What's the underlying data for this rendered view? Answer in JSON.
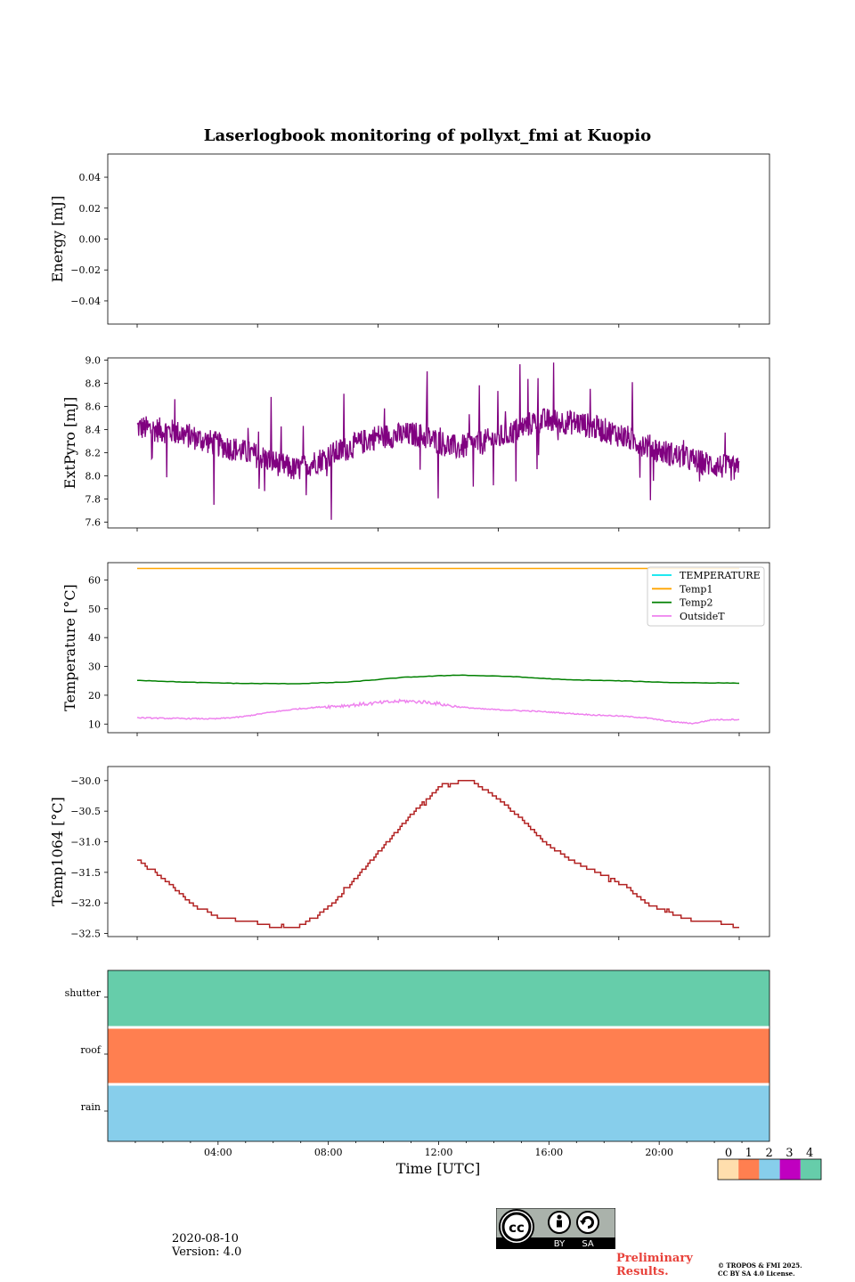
{
  "figure": {
    "title": "Laserlogbook monitoring of pollyxt_fmi at Kuopio",
    "xlabel": "Time [UTC]",
    "x_ticks": [
      "04:00",
      "08:00",
      "12:00",
      "16:00",
      "20:00"
    ],
    "x_tick_hours": [
      4,
      8,
      12,
      16,
      20
    ],
    "x_range_hours": [
      0,
      24
    ]
  },
  "chart_data": [
    {
      "type": "line",
      "id": "energy",
      "ylabel": "Energy [mJ]",
      "ylim": [
        -0.055,
        0.055
      ],
      "yticks": [
        0.04,
        0.02,
        0.0,
        -0.02,
        -0.04
      ],
      "ytick_labels": [
        "0.04",
        "0.02",
        "0.00",
        "−0.02",
        "−0.04"
      ],
      "series": []
    },
    {
      "type": "line",
      "id": "extpyro",
      "ylabel": "ExtPyro [mJ]",
      "ylim": [
        7.55,
        9.02
      ],
      "yticks": [
        9.0,
        8.8,
        8.6,
        8.4,
        8.2,
        8.0,
        7.8,
        7.6
      ],
      "ytick_labels": [
        "9.0",
        "8.8",
        "8.6",
        "8.4",
        "8.2",
        "8.0",
        "7.8",
        "7.6"
      ],
      "series": [
        {
          "name": "ExtPyro",
          "color": "#800080",
          "x_hours": [
            1.1,
            2.5,
            4.0,
            5.5,
            7.0,
            8.5,
            10.0,
            11.5,
            13.0,
            14.5,
            16.0,
            17.5,
            19.0,
            20.5,
            22.0,
            23.5
          ],
          "y_mean": [
            8.42,
            8.38,
            8.28,
            8.18,
            8.05,
            8.2,
            8.34,
            8.36,
            8.24,
            8.32,
            8.48,
            8.46,
            8.36,
            8.22,
            8.12,
            8.05
          ],
          "noise": 0.11
        }
      ]
    },
    {
      "type": "line",
      "id": "temperature",
      "ylabel": "Temperature [°C]",
      "ylim": [
        7,
        66
      ],
      "yticks": [
        60,
        50,
        40,
        30,
        20,
        10
      ],
      "ytick_labels": [
        "60",
        "50",
        "40",
        "30",
        "20",
        "10"
      ],
      "legend": "top-right",
      "series": [
        {
          "name": "TEMPERATURE",
          "color": "#00e5ee",
          "x_hours": [],
          "y": []
        },
        {
          "name": "Temp1",
          "color": "#ffa500",
          "x_hours": [
            1.1,
            23.5
          ],
          "y": [
            64,
            64
          ]
        },
        {
          "name": "Temp2",
          "color": "#008000",
          "x_hours": [
            1.1,
            3,
            5,
            7,
            9,
            11,
            13,
            15,
            17,
            19,
            21,
            23.5
          ],
          "y": [
            25.2,
            24.5,
            24.1,
            24.0,
            24.6,
            26.2,
            27.0,
            26.5,
            25.4,
            25.0,
            24.4,
            24.2
          ]
        },
        {
          "name": "OutsideT",
          "color": "#ee82ee",
          "x_hours": [
            1.1,
            2,
            3,
            4,
            5,
            6,
            7,
            8,
            9,
            10,
            11,
            12,
            13,
            14,
            15,
            16,
            17,
            18,
            19,
            20,
            21,
            21.8,
            22.5,
            23.5
          ],
          "y": [
            12.2,
            12.0,
            11.9,
            11.8,
            12.5,
            14.0,
            15.2,
            16.0,
            16.5,
            17.3,
            18.0,
            17.5,
            16.0,
            15.2,
            14.8,
            14.4,
            13.8,
            13.2,
            12.8,
            12.2,
            10.8,
            10.2,
            11.5,
            11.6
          ]
        }
      ]
    },
    {
      "type": "line",
      "id": "temp1064",
      "ylabel": "Temp1064 [°C]",
      "ylim": [
        -32.55,
        -29.77
      ],
      "yticks": [
        -30.0,
        -30.5,
        -31.0,
        -31.5,
        -32.0,
        -32.5
      ],
      "ytick_labels": [
        "−30.0",
        "−30.5",
        "−31.0",
        "−31.5",
        "−32.0",
        "−32.5"
      ],
      "series": [
        {
          "name": "Temp1064",
          "color": "#b22222",
          "x_hours": [
            1.1,
            2.2,
            3.2,
            4.2,
            5.3,
            6.2,
            7.0,
            7.8,
            8.5,
            9.5,
            10.5,
            11.5,
            12.5,
            13.5,
            14.2,
            15.2,
            16.2,
            17.2,
            18.2,
            19.2,
            20.0,
            20.8,
            21.8,
            22.6,
            23.5
          ],
          "y": [
            -31.3,
            -31.65,
            -32.05,
            -32.25,
            -32.3,
            -32.4,
            -32.4,
            -32.2,
            -31.95,
            -31.45,
            -30.95,
            -30.45,
            -30.05,
            -30.0,
            -30.2,
            -30.55,
            -31.0,
            -31.3,
            -31.5,
            -31.7,
            -32.0,
            -32.15,
            -32.3,
            -32.3,
            -32.4
          ],
          "step": 0.05
        }
      ]
    },
    {
      "type": "table",
      "id": "status",
      "rows": [
        "shutter",
        "roof",
        "rain"
      ],
      "row_values": [
        4,
        1,
        2
      ],
      "colorbar_ticks": [
        "0",
        "1",
        "2",
        "3",
        "4"
      ],
      "colorbar_colors": [
        "#ffdead",
        "#ff7f50",
        "#87ceeb",
        "#c000c0",
        "#66cdaa"
      ]
    }
  ],
  "footer": {
    "date": "2020-08-10",
    "version": "Version: 4.0",
    "preliminary_line1": "Preliminary",
    "preliminary_line2": "Results.",
    "copyright_line1": "© TROPOS & FMI 2025.",
    "copyright_line2": "CC BY SA 4.0 License.",
    "license_by": "BY",
    "license_sa": "SA"
  }
}
